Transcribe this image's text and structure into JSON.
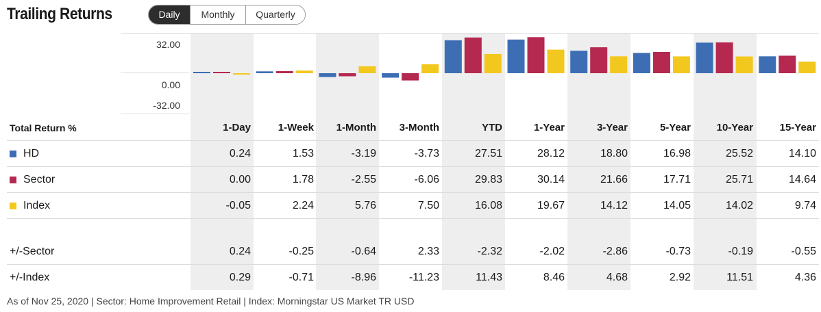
{
  "header": {
    "title": "Trailing Returns",
    "tabs": [
      "Daily",
      "Monthly",
      "Quarterly"
    ],
    "active_tab": "Daily"
  },
  "colors": {
    "HD": "#3d6eb4",
    "Sector": "#b5284f",
    "Index": "#f2c81e",
    "shaded_column": "#eeeeee"
  },
  "chart_data": {
    "type": "bar",
    "categories": [
      "1-Day",
      "1-Week",
      "1-Month",
      "3-Month",
      "YTD",
      "1-Year",
      "3-Year",
      "5-Year",
      "10-Year",
      "15-Year"
    ],
    "series": [
      {
        "name": "HD",
        "values": [
          0.24,
          1.53,
          -3.19,
          -3.73,
          27.51,
          28.12,
          18.8,
          16.98,
          25.52,
          14.1
        ]
      },
      {
        "name": "Sector",
        "values": [
          0.0,
          1.78,
          -2.55,
          -6.06,
          29.83,
          30.14,
          21.66,
          17.71,
          25.71,
          14.64
        ]
      },
      {
        "name": "Index",
        "values": [
          -0.05,
          2.24,
          5.76,
          7.5,
          16.08,
          19.67,
          14.12,
          14.05,
          14.02,
          9.74
        ]
      }
    ],
    "yticks": [
      "32.00",
      "0.00",
      "-32.00"
    ],
    "ylim": [
      -32,
      32
    ]
  },
  "table": {
    "header_label": "Total Return %",
    "columns": [
      "1-Day",
      "1-Week",
      "1-Month",
      "3-Month",
      "YTD",
      "1-Year",
      "3-Year",
      "5-Year",
      "10-Year",
      "15-Year"
    ],
    "rows": [
      {
        "label": "HD",
        "swatch": "#3d6eb4",
        "values": [
          "0.24",
          "1.53",
          "-3.19",
          "-3.73",
          "27.51",
          "28.12",
          "18.80",
          "16.98",
          "25.52",
          "14.10"
        ]
      },
      {
        "label": "Sector",
        "swatch": "#b5284f",
        "values": [
          "0.00",
          "1.78",
          "-2.55",
          "-6.06",
          "29.83",
          "30.14",
          "21.66",
          "17.71",
          "25.71",
          "14.64"
        ]
      },
      {
        "label": "Index",
        "swatch": "#f2c81e",
        "values": [
          "-0.05",
          "2.24",
          "5.76",
          "7.50",
          "16.08",
          "19.67",
          "14.12",
          "14.05",
          "14.02",
          "9.74"
        ]
      }
    ],
    "diff_rows": [
      {
        "label": "+/-Sector",
        "values": [
          "0.24",
          "-0.25",
          "-0.64",
          "2.33",
          "-2.32",
          "-2.02",
          "-2.86",
          "-0.73",
          "-0.19",
          "-0.55"
        ]
      },
      {
        "label": "+/-Index",
        "values": [
          "0.29",
          "-0.71",
          "-8.96",
          "-11.23",
          "11.43",
          "8.46",
          "4.68",
          "2.92",
          "11.51",
          "4.36"
        ]
      }
    ]
  },
  "footer": "As of Nov 25, 2020 | Sector: Home Improvement Retail | Index: Morningstar US Market TR USD"
}
